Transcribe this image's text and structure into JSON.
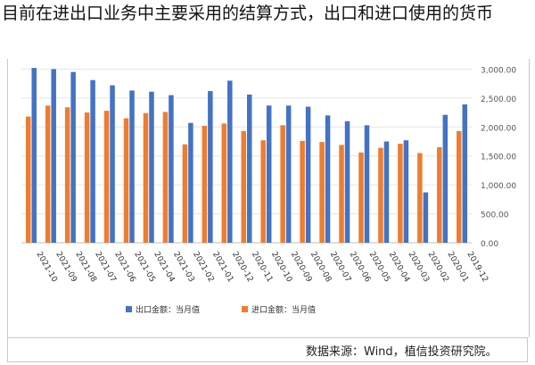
{
  "headline": "目前在进出口业务中主要采用的结算方式，出口和进口使用的货币",
  "chart_data": {
    "type": "bar",
    "categories": [
      "2021-10",
      "2021-09",
      "2021-08",
      "2021-07",
      "2021-06",
      "2021-05",
      "2021-04",
      "2021-03",
      "2021-02",
      "2021-01",
      "2020-12",
      "2020-11",
      "2020-10",
      "2020-09",
      "2020-08",
      "2020-07",
      "2020-06",
      "2020-05",
      "2020-04",
      "2020-03",
      "2020-02",
      "2020-01",
      "2019-12"
    ],
    "series": [
      {
        "name": "出口金额：当月值",
        "color": "#4472c4",
        "values": [
          3020,
          3000,
          2950,
          2810,
          2720,
          2630,
          2610,
          2550,
          2070,
          2620,
          2800,
          2560,
          2370,
          2370,
          2350,
          2200,
          2100,
          2030,
          1750,
          1770,
          870,
          2210,
          2390
        ]
      },
      {
        "name": "进口金额：当月值",
        "color": "#ed7d31",
        "values": [
          2180,
          2370,
          2340,
          2250,
          2280,
          2150,
          2240,
          2260,
          1700,
          2020,
          2060,
          1930,
          1770,
          2030,
          1760,
          1740,
          1690,
          1560,
          1640,
          1710,
          1550,
          1650,
          1930
        ]
      }
    ],
    "y_ticks": [
      "0.00",
      "500.00",
      "1,000.00",
      "1,500.00",
      "2,000.00",
      "2,500.00",
      "3,000.00",
      "3,500.00"
    ],
    "ylim": [
      0,
      3500
    ],
    "grid": true,
    "legend_position": "bottom"
  },
  "source": "数据来源：Wind，植信投资研究院。"
}
